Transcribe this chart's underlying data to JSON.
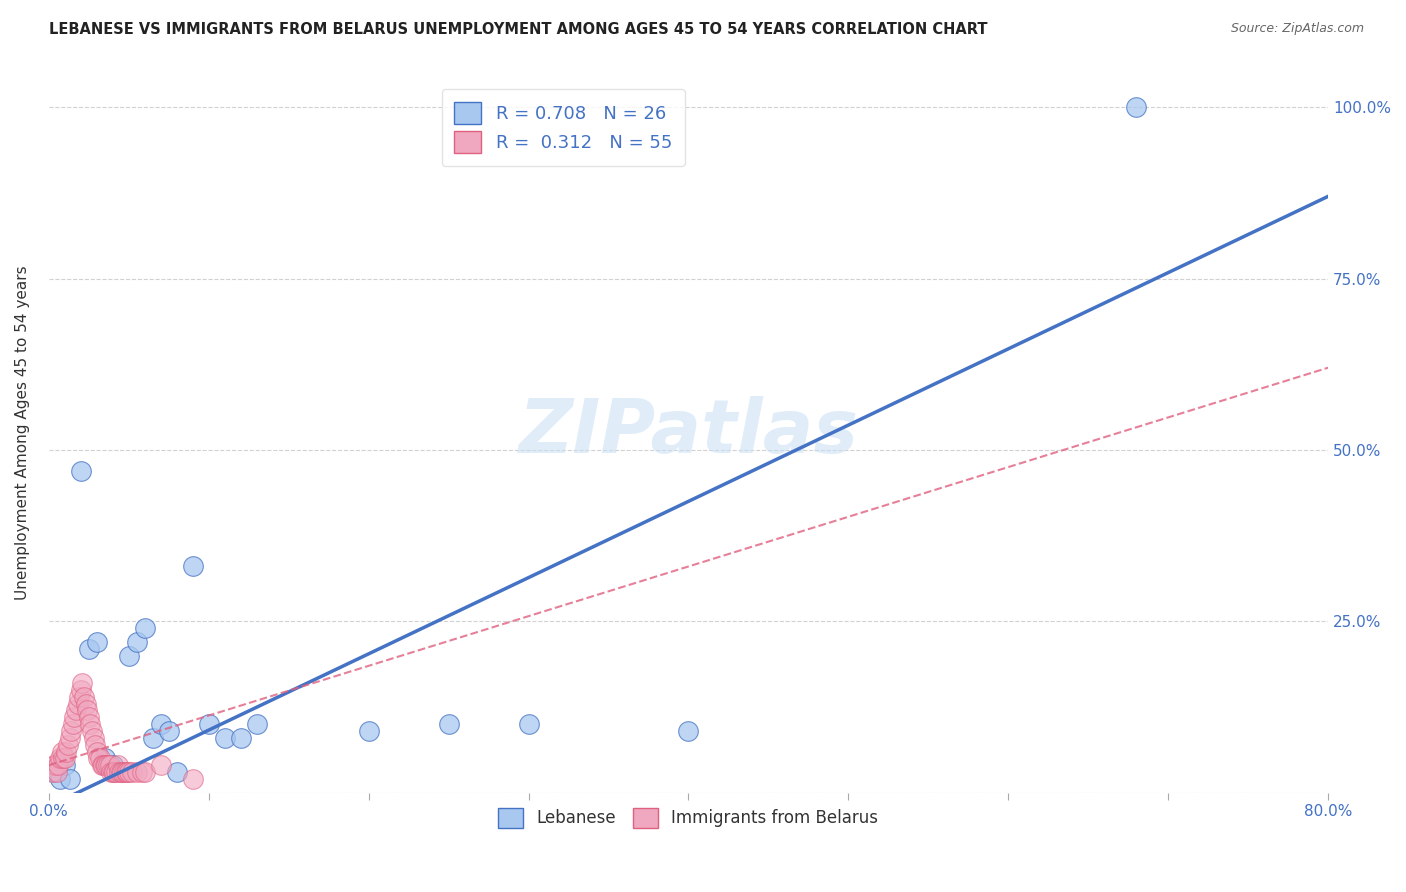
{
  "title": "LEBANESE VS IMMIGRANTS FROM BELARUS UNEMPLOYMENT AMONG AGES 45 TO 54 YEARS CORRELATION CHART",
  "source": "Source: ZipAtlas.com",
  "ylabel": "Unemployment Among Ages 45 to 54 years",
  "xlim": [
    0.0,
    0.8
  ],
  "ylim": [
    0.0,
    1.05
  ],
  "x_ticks": [
    0.0,
    0.1,
    0.2,
    0.3,
    0.4,
    0.5,
    0.6,
    0.7,
    0.8
  ],
  "x_tick_labels": [
    "0.0%",
    "",
    "",
    "",
    "",
    "",
    "",
    "",
    "80.0%"
  ],
  "y_ticks": [
    0.0,
    0.25,
    0.5,
    0.75,
    1.0
  ],
  "y_tick_labels_right": [
    "",
    "25.0%",
    "50.0%",
    "75.0%",
    "100.0%"
  ],
  "watermark": "ZIPatlas",
  "legend_r1": "R = 0.708",
  "legend_n1": "N = 26",
  "legend_r2": "R = 0.312",
  "legend_n2": "N = 55",
  "color_lebanese": "#a8c8f0",
  "color_belarus": "#f0a8c0",
  "color_line_lebanese": "#4472c4",
  "color_line_belarus": "#e06080",
  "background_color": "#ffffff",
  "lebanese_x": [
    0.003,
    0.007,
    0.01,
    0.013,
    0.02,
    0.025,
    0.03,
    0.035,
    0.04,
    0.05,
    0.055,
    0.06,
    0.065,
    0.07,
    0.075,
    0.08,
    0.09,
    0.1,
    0.11,
    0.12,
    0.13,
    0.2,
    0.25,
    0.3,
    0.4,
    0.68
  ],
  "lebanese_y": [
    0.03,
    0.02,
    0.04,
    0.02,
    0.47,
    0.21,
    0.22,
    0.05,
    0.04,
    0.2,
    0.22,
    0.24,
    0.08,
    0.1,
    0.09,
    0.03,
    0.33,
    0.1,
    0.08,
    0.08,
    0.1,
    0.09,
    0.1,
    0.1,
    0.09,
    1.0
  ],
  "belarus_x": [
    0.002,
    0.003,
    0.004,
    0.005,
    0.006,
    0.007,
    0.008,
    0.009,
    0.01,
    0.011,
    0.012,
    0.013,
    0.014,
    0.015,
    0.016,
    0.017,
    0.018,
    0.019,
    0.02,
    0.021,
    0.022,
    0.023,
    0.024,
    0.025,
    0.026,
    0.027,
    0.028,
    0.029,
    0.03,
    0.031,
    0.032,
    0.033,
    0.034,
    0.035,
    0.036,
    0.037,
    0.038,
    0.039,
    0.04,
    0.041,
    0.042,
    0.043,
    0.044,
    0.045,
    0.046,
    0.047,
    0.048,
    0.049,
    0.05,
    0.052,
    0.055,
    0.058,
    0.06,
    0.07,
    0.09
  ],
  "belarus_y": [
    0.03,
    0.04,
    0.04,
    0.03,
    0.04,
    0.05,
    0.06,
    0.05,
    0.05,
    0.06,
    0.07,
    0.08,
    0.09,
    0.1,
    0.11,
    0.12,
    0.13,
    0.14,
    0.15,
    0.16,
    0.14,
    0.13,
    0.12,
    0.11,
    0.1,
    0.09,
    0.08,
    0.07,
    0.06,
    0.05,
    0.05,
    0.04,
    0.04,
    0.04,
    0.04,
    0.04,
    0.04,
    0.03,
    0.03,
    0.03,
    0.03,
    0.04,
    0.03,
    0.03,
    0.03,
    0.03,
    0.03,
    0.03,
    0.03,
    0.03,
    0.03,
    0.03,
    0.03,
    0.04,
    0.02
  ],
  "leb_line_x0": 0.0,
  "leb_line_y0": -0.02,
  "leb_line_x1": 0.8,
  "leb_line_y1": 0.87,
  "bel_line_x0": 0.0,
  "bel_line_y0": 0.04,
  "bel_line_x1": 0.8,
  "bel_line_y1": 0.62
}
